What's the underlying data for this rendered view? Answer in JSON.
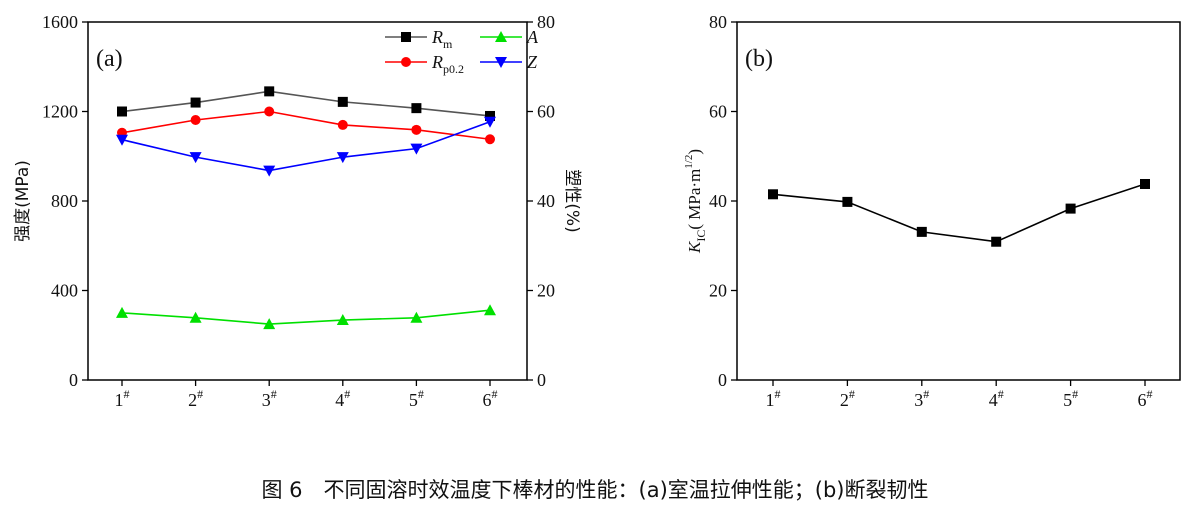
{
  "caption": "图 6　不同固溶时效温度下棒材的性能：(a)室温拉伸性能；(b)断裂韧性",
  "chart_data": [
    {
      "type": "line",
      "panel_label": "(a)",
      "categories": [
        "1#",
        "2#",
        "3#",
        "4#",
        "5#",
        "6#"
      ],
      "ylabel": "强度(MPa)",
      "ylim": [
        0,
        1600
      ],
      "yticks": [
        0,
        400,
        800,
        1200,
        1600
      ],
      "y2label": "塑性(%)",
      "y2lim": [
        0,
        80
      ],
      "y2ticks": [
        0,
        20,
        40,
        60,
        80
      ],
      "legend_position": "top-right",
      "grid": false,
      "series": [
        {
          "name": "Rm",
          "name_main": "R",
          "name_sub": "m",
          "axis": "left",
          "color": "#000000",
          "line_color": "#555555",
          "marker": "square",
          "values": [
            1200,
            1240,
            1290,
            1243,
            1215,
            1180
          ]
        },
        {
          "name": "Rp0.2",
          "name_main": "R",
          "name_sub": "p0.2",
          "axis": "left",
          "color": "#ff0000",
          "line_color": "#ff0000",
          "marker": "circle",
          "values": [
            1105,
            1162,
            1200,
            1140,
            1118,
            1076
          ]
        },
        {
          "name": "A",
          "name_main": "A",
          "name_sub": "",
          "axis": "right",
          "color": "#00e000",
          "line_color": "#00e000",
          "marker": "triangle-up",
          "values": [
            15.0,
            13.9,
            12.5,
            13.4,
            13.9,
            15.6
          ]
        },
        {
          "name": "Z",
          "name_main": "Z",
          "name_sub": "",
          "axis": "right",
          "color": "#0000ff",
          "line_color": "#0000ff",
          "marker": "triangle-down",
          "values": [
            53.7,
            49.8,
            46.8,
            49.8,
            51.7,
            57.7
          ]
        }
      ]
    },
    {
      "type": "line",
      "panel_label": "(b)",
      "categories": [
        "1#",
        "2#",
        "3#",
        "4#",
        "5#",
        "6#"
      ],
      "ylabel_main": "K",
      "ylabel_sub": "IC",
      "ylabel_rest": "( MPa·m",
      "ylabel_sup": "1/2",
      "ylabel_close": ")",
      "ylim": [
        0,
        80
      ],
      "yticks": [
        0,
        20,
        40,
        60,
        80
      ],
      "grid": false,
      "series": [
        {
          "color": "#000000",
          "marker": "square",
          "values": [
            41.5,
            39.8,
            33.1,
            30.9,
            38.3,
            43.8
          ]
        }
      ]
    }
  ]
}
